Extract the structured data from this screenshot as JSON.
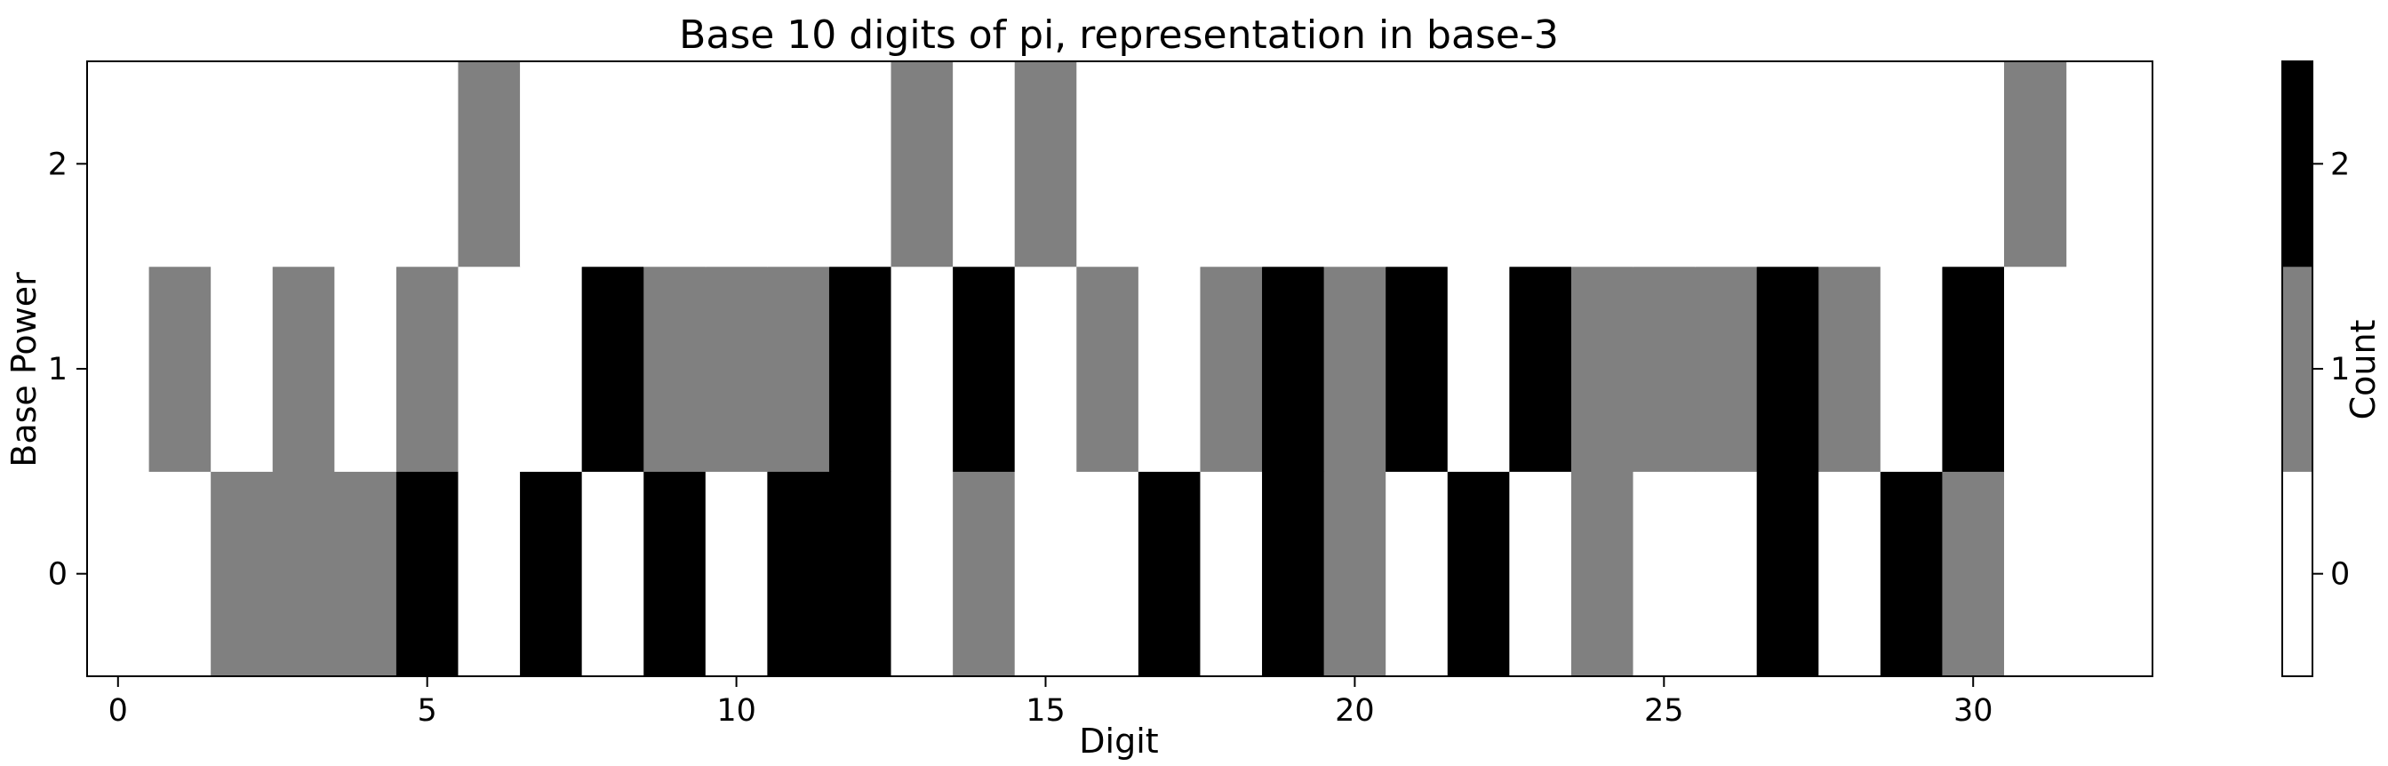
{
  "chart_data": {
    "type": "heatmap",
    "title": "Base 10 digits of pi, representation in base-3",
    "xlabel": "Digit",
    "ylabel": "Base Power",
    "xlim": [
      -0.5,
      32.9
    ],
    "ylim": [
      -0.5,
      2.5
    ],
    "x_ticks": [
      0,
      5,
      10,
      15,
      20,
      25,
      30
    ],
    "y_ticks": [
      0,
      1,
      2
    ],
    "colorbar": {
      "label": "Count",
      "ticks": [
        0,
        1,
        2
      ],
      "levels": [
        0,
        1,
        2
      ],
      "colors": [
        "#ffffff",
        "#808080",
        "#000000"
      ]
    },
    "x": [
      0,
      1,
      2,
      3,
      4,
      5,
      6,
      7,
      8,
      9,
      10,
      11,
      12,
      13,
      14,
      15,
      16,
      17,
      18,
      19,
      20,
      21,
      22,
      23,
      24,
      25,
      26,
      27,
      28,
      29,
      30,
      31
    ],
    "rows": [
      {
        "power": 0,
        "values": [
          0,
          0,
          1,
          1,
          1,
          2,
          0,
          2,
          0,
          2,
          0,
          2,
          2,
          0,
          1,
          0,
          0,
          2,
          0,
          2,
          1,
          0,
          2,
          0,
          1,
          0,
          0,
          2,
          0,
          2,
          1,
          0
        ]
      },
      {
        "power": 1,
        "values": [
          0,
          1,
          0,
          1,
          0,
          1,
          0,
          0,
          2,
          1,
          1,
          1,
          2,
          0,
          2,
          0,
          1,
          0,
          1,
          2,
          1,
          2,
          0,
          2,
          1,
          1,
          1,
          2,
          1,
          0,
          2,
          0
        ]
      },
      {
        "power": 2,
        "values": [
          0,
          0,
          0,
          0,
          0,
          0,
          1,
          0,
          0,
          0,
          0,
          0,
          0,
          1,
          0,
          1,
          0,
          0,
          0,
          0,
          0,
          0,
          0,
          0,
          0,
          0,
          0,
          0,
          0,
          0,
          0,
          1
        ]
      }
    ],
    "grid": false,
    "legend": "none"
  }
}
